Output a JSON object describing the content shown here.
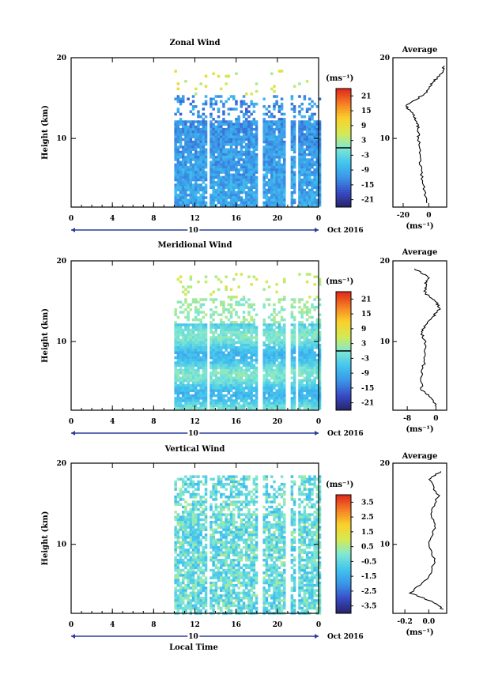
{
  "figure": {
    "xlabel": "Local Time",
    "date_label": "Oct 2016",
    "day_label": "10",
    "ylabel": "Height (km)",
    "unit": "(ms⁻¹)",
    "avg_title": "Average"
  },
  "chart_data": [
    {
      "type": "heatmap",
      "title": "Zonal Wind",
      "ylabel": "Height (km)",
      "xlabel": "Local Time",
      "x_ticks": [
        "0",
        "4",
        "8",
        "12",
        "16",
        "20",
        "0"
      ],
      "y_ticks": [
        "20",
        "10"
      ],
      "xlim": [
        0,
        24
      ],
      "ylim": [
        1.5,
        20
      ],
      "data_start_hour": 10,
      "data_top_km": 18.5,
      "colorbar": {
        "label": "(ms⁻¹)",
        "range": [
          -24,
          24
        ],
        "ticks": [
          "21",
          "15",
          "9",
          "3",
          "-3",
          "-9",
          "-15",
          "-21"
        ],
        "zero_line": true
      },
      "profile": {
        "title": "Average",
        "xlabel": "(ms⁻¹)",
        "x_ticks": [
          "-20",
          "0"
        ],
        "xlim": [
          -28,
          14
        ],
        "heights": [
          2,
          4,
          6,
          8,
          10,
          11,
          12,
          13,
          14,
          15,
          16,
          17,
          18,
          19
        ],
        "values": [
          -2,
          -4,
          -6,
          -7,
          -8,
          -8,
          -9,
          -12,
          -18,
          -8,
          0,
          3,
          10,
          12
        ]
      }
    },
    {
      "type": "heatmap",
      "title": "Meridional Wind",
      "ylabel": "Height (km)",
      "xlabel": "Local Time",
      "x_ticks": [
        "0",
        "4",
        "8",
        "12",
        "16",
        "20",
        "0"
      ],
      "y_ticks": [
        "20",
        "10"
      ],
      "xlim": [
        0,
        24
      ],
      "ylim": [
        1.5,
        20
      ],
      "data_start_hour": 10,
      "data_top_km": 18.5,
      "colorbar": {
        "label": "(ms⁻¹)",
        "range": [
          -24,
          24
        ],
        "ticks": [
          "21",
          "15",
          "9",
          "3",
          "-3",
          "-9",
          "-15",
          "-21"
        ],
        "zero_line": true
      },
      "profile": {
        "title": "Average",
        "xlabel": "(ms⁻¹)",
        "x_ticks": [
          "-8",
          "0"
        ],
        "xlim": [
          -12,
          3
        ],
        "heights": [
          2,
          3,
          4,
          6,
          8,
          10,
          11,
          12,
          13,
          14,
          15,
          16,
          17,
          18,
          19
        ],
        "values": [
          0,
          -1,
          -4,
          -4,
          -3,
          -3,
          -4,
          -3,
          -1,
          1,
          0,
          -3,
          -3,
          -2,
          -6
        ]
      }
    },
    {
      "type": "heatmap",
      "title": "Vertical Wind",
      "ylabel": "Height (km)",
      "xlabel": "Local Time",
      "x_ticks": [
        "0",
        "4",
        "8",
        "12",
        "16",
        "20",
        "0"
      ],
      "y_ticks": [
        "20",
        "10"
      ],
      "xlim": [
        0,
        24
      ],
      "ylim": [
        1.5,
        20
      ],
      "data_start_hour": 10,
      "data_top_km": 18.5,
      "colorbar": {
        "label": "(ms⁻¹)",
        "range": [
          -4,
          4
        ],
        "ticks": [
          "3.5",
          "2.5",
          "1.5",
          "0.5",
          "-0.5",
          "-1.5",
          "-2.5",
          "-3.5"
        ],
        "zero_line": false
      },
      "profile": {
        "title": "Average",
        "xlabel": "(ms⁻¹)",
        "x_ticks": [
          "-0.2",
          "0.0"
        ],
        "xlim": [
          -0.3,
          0.15
        ],
        "heights": [
          2,
          3,
          4,
          6,
          8,
          10,
          12,
          14,
          16,
          18,
          19
        ],
        "values": [
          0.12,
          0.02,
          -0.15,
          0.0,
          0.05,
          0.0,
          0.05,
          0.02,
          0.08,
          0.0,
          0.1
        ]
      }
    }
  ]
}
